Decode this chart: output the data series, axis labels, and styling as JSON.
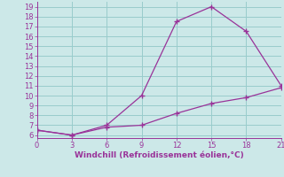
{
  "line1_x": [
    0,
    3,
    6,
    9,
    12,
    15,
    18,
    21
  ],
  "line1_y": [
    6.5,
    6.0,
    7.0,
    10.0,
    17.5,
    19.0,
    16.5,
    11.0
  ],
  "line2_x": [
    0,
    3,
    6,
    9,
    12,
    15,
    18,
    21
  ],
  "line2_y": [
    6.5,
    6.0,
    6.8,
    7.0,
    8.2,
    9.2,
    9.8,
    10.8
  ],
  "line_color": "#993399",
  "bg_color": "#cce8e8",
  "grid_color": "#99cccc",
  "xlabel": "Windchill (Refroidissement éolien,°C)",
  "xlabel_color": "#993399",
  "ylabel_ticks": [
    6,
    7,
    8,
    9,
    10,
    11,
    12,
    13,
    14,
    15,
    16,
    17,
    18,
    19
  ],
  "xticks": [
    0,
    3,
    6,
    9,
    12,
    15,
    18,
    21
  ],
  "xlim": [
    0,
    21
  ],
  "ylim": [
    5.7,
    19.5
  ],
  "tick_fontsize": 6,
  "xlabel_fontsize": 6.5
}
